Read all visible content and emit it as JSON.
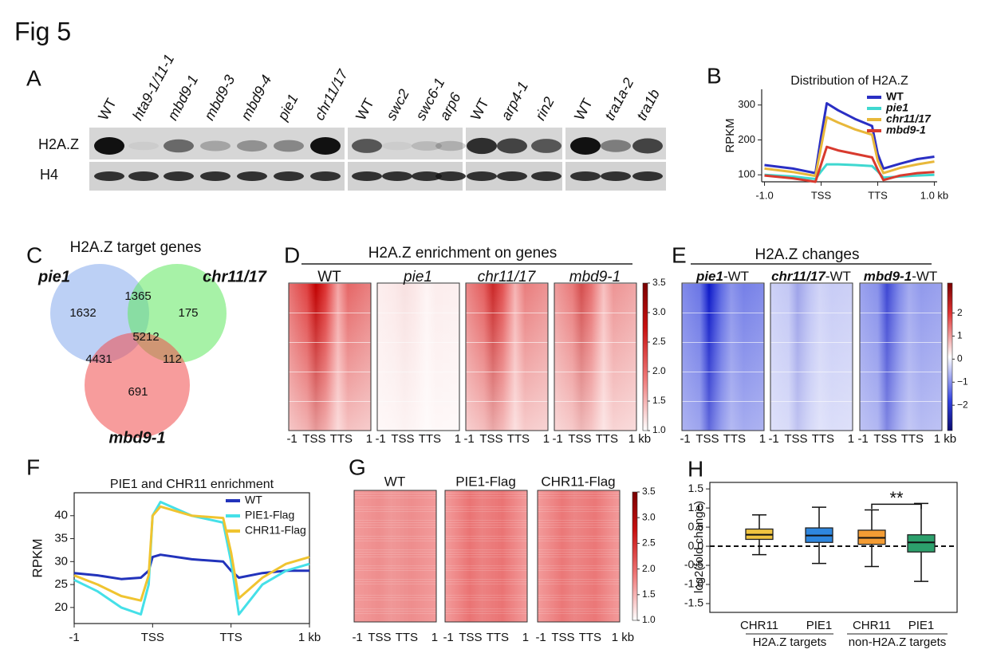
{
  "title": "Fig 5",
  "a": {
    "label": "A",
    "rows": [
      "H2A.Z",
      "H4"
    ],
    "lanes": [
      [
        "WT",
        "hta9-1/11-1",
        "mbd9-1",
        "mbd9-3",
        "mbd9-4",
        "pie1",
        "chr11/17"
      ],
      [
        "WT",
        "swc2",
        "swc6-1",
        "arp6"
      ],
      [
        "WT",
        "arp4-1",
        "rin2"
      ],
      [
        "WT",
        "tra1a-2",
        "tra1b"
      ]
    ]
  },
  "b": {
    "label": "B",
    "chart": {
      "type": "line",
      "title": "Distribution of H2A.Z",
      "ylabel": "RPKM",
      "x": [
        0,
        0.5,
        0.9,
        1.0,
        1.1,
        1.3,
        1.6,
        1.9,
        2.0,
        2.1,
        2.4,
        2.7,
        3.0
      ],
      "series": [
        {
          "name": "WT",
          "color": "#2a2fc4",
          "values": [
            128,
            118,
            105,
            210,
            305,
            285,
            260,
            240,
            160,
            118,
            132,
            145,
            152
          ]
        },
        {
          "name": "pie1",
          "color": "#3fd8d0",
          "values": [
            100,
            95,
            88,
            110,
            130,
            130,
            128,
            125,
            110,
            92,
            95,
            98,
            100
          ]
        },
        {
          "name": "chr11/17",
          "color": "#e8b83a",
          "values": [
            118,
            108,
            97,
            180,
            265,
            250,
            230,
            215,
            140,
            105,
            120,
            130,
            138
          ]
        },
        {
          "name": "mbd9-1",
          "color": "#d83a2e",
          "values": [
            98,
            90,
            80,
            130,
            180,
            170,
            160,
            150,
            115,
            85,
            98,
            105,
            108
          ]
        }
      ],
      "xlim": [
        -0.05,
        3.05
      ],
      "ylim": [
        80,
        345
      ],
      "xticks": [
        {
          "value": 0,
          "label": "-1.0"
        },
        {
          "value": 1,
          "label": "TSS"
        },
        {
          "value": 2,
          "label": "TTS"
        },
        {
          "value": 3,
          "label": "1.0 kb"
        }
      ],
      "yticks": [
        100,
        200,
        300
      ],
      "legend": "upper right"
    }
  },
  "c": {
    "label": "C",
    "title": "H2A.Z target genes",
    "sets": [
      "pie1",
      "chr11/17",
      "mbd9-1"
    ],
    "regions": [
      1632,
      1365,
      175,
      5212,
      4431,
      112,
      691
    ]
  },
  "d": {
    "label": "D",
    "title": "H2A.Z enrichment on genes",
    "columns": [
      "WT",
      "pie1",
      "chr11/17",
      "mbd9-1"
    ],
    "italic": [
      false,
      true,
      true,
      true
    ],
    "x_labels": [
      "-1",
      "TSS",
      "TTS",
      "1"
    ],
    "last_x_label": "1 kb",
    "colorbar": {
      "lim": [
        1.0,
        3.5
      ],
      "ticks": [
        {
          "value": 1.0,
          "label": "1.0"
        },
        {
          "value": 1.5,
          "label": "1.5"
        },
        {
          "value": 2.0,
          "label": "2.0"
        },
        {
          "value": 2.5,
          "label": "2.5"
        },
        {
          "value": 3.0,
          "label": "3.0"
        },
        {
          "value": 3.5,
          "label": "3.5"
        }
      ]
    }
  },
  "e": {
    "label": "E",
    "title": "H2A.Z changes",
    "columns": [
      {
        "italic": "pie1",
        "text": "-WT"
      },
      {
        "italic": "chr11/17",
        "text": "-WT"
      },
      {
        "italic": "mbd9-1",
        "text": "-WT"
      }
    ],
    "x_labels": [
      "-1",
      "TSS",
      "TTS",
      "1"
    ],
    "last_x_label": "1 kb",
    "colorbar": {
      "lim": [
        -3.1,
        3.3
      ],
      "ticks": [
        2,
        1,
        0,
        {
          "value": -1,
          "label": "−1"
        },
        {
          "value": -2,
          "label": "−2"
        }
      ]
    }
  },
  "f": {
    "label": "F",
    "chart": {
      "type": "line",
      "title": "PIE1 and CHR11 enrichment",
      "ylabel": "RPKM",
      "x": [
        0,
        0.3,
        0.6,
        0.85,
        0.95,
        1.0,
        1.1,
        1.5,
        1.9,
        2.0,
        2.1,
        2.4,
        2.7,
        3.0
      ],
      "series": [
        {
          "name": "WT",
          "color": "#2233bb",
          "values": [
            27.5,
            27,
            26.2,
            26.5,
            28,
            31,
            31.5,
            30.5,
            30,
            28,
            26.5,
            27.5,
            28,
            28
          ]
        },
        {
          "name": "PIE1-Flag",
          "color": "#45e0e8",
          "values": [
            26,
            23.5,
            20,
            18.5,
            25,
            40,
            43,
            40,
            38.5,
            30,
            18.5,
            25,
            28,
            29.5
          ]
        },
        {
          "name": "CHR11-Flag",
          "color": "#f0c430",
          "values": [
            27,
            25,
            22.5,
            21.5,
            27,
            40,
            42,
            40,
            39.5,
            32,
            22,
            26.5,
            29.5,
            31
          ]
        }
      ],
      "xlim": [
        0,
        3
      ],
      "ylim": [
        16.5,
        45
      ],
      "xticks": [
        {
          "value": 0,
          "label": "-1"
        },
        {
          "value": 1,
          "label": "TSS"
        },
        {
          "value": 2,
          "label": "TTS"
        },
        {
          "value": 3,
          "label": "1 kb"
        }
      ],
      "yticks": [
        20,
        25,
        30,
        35,
        40
      ],
      "legend": "upper right"
    }
  },
  "g": {
    "label": "G",
    "columns": [
      "WT",
      "PIE1-Flag",
      "CHR11-Flag"
    ],
    "x_labels": [
      "-1",
      "TSS",
      "TTS",
      "1"
    ],
    "last_x_label": "1 kb",
    "colorbar": {
      "lim": [
        1.0,
        3.5
      ],
      "ticks": [
        {
          "value": 1.0,
          "label": "1.0"
        },
        {
          "value": 1.5,
          "label": "1.5"
        },
        {
          "value": 2.0,
          "label": "2.0"
        },
        {
          "value": 2.5,
          "label": "2.5"
        },
        {
          "value": 3.0,
          "label": "3.0"
        },
        {
          "value": 3.5,
          "label": "3.5"
        }
      ]
    }
  },
  "h": {
    "label": "H",
    "chart": {
      "type": "box",
      "ylabel": "log2(fold change)",
      "categories": [
        "CHR11",
        "PIE1",
        "CHR11",
        "PIE1"
      ],
      "groups": [
        "H2A.Z targets",
        "non-H2A.Z targets"
      ],
      "colors": [
        "#f0c440",
        "#2e86de",
        "#f39c34",
        "#2ca06c"
      ],
      "low": [
        -0.22,
        -0.45,
        -0.53,
        -0.92
      ],
      "q1": [
        0.18,
        0.1,
        0.05,
        -0.15
      ],
      "median": [
        0.3,
        0.28,
        0.22,
        0.1
      ],
      "q3": [
        0.45,
        0.48,
        0.42,
        0.3
      ],
      "high": [
        0.82,
        1.02,
        0.95,
        1.12
      ],
      "ylim": [
        -1.73,
        1.67
      ],
      "yticks": [
        {
          "value": -1.5,
          "label": "-1.5"
        },
        {
          "value": -1.0,
          "label": "-1.0"
        },
        {
          "value": -0.5,
          "label": "-0.5"
        },
        {
          "value": 0,
          "label": "0.0"
        },
        {
          "value": 0.5,
          "label": "0.5"
        },
        {
          "value": 1.0,
          "label": "1.0"
        },
        {
          "value": 1.5,
          "label": "1.5"
        }
      ],
      "annotation": "**"
    }
  }
}
